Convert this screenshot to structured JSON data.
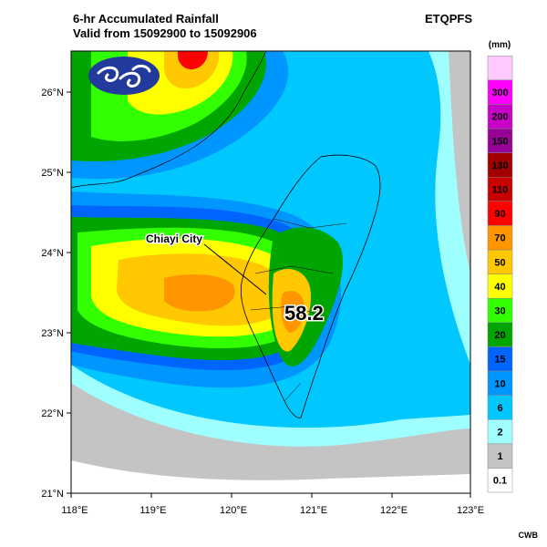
{
  "header": {
    "title": "6-hr Accumulated Rainfall",
    "valid": "Valid from 15092900 to 15092906",
    "product": "ETQPFS"
  },
  "map": {
    "lat_ticks": [
      "21°N",
      "22°N",
      "23°N",
      "24°N",
      "25°N",
      "26°N"
    ],
    "lon_ticks": [
      "118°E",
      "119°E",
      "120°E",
      "121°E",
      "122°E",
      "123°E"
    ],
    "callout_label": "Chiayi City",
    "max_value": "58.2",
    "logo_icon": "cwb-wind-logo-icon"
  },
  "legend": {
    "unit": "(mm)",
    "levels": [
      {
        "label": "0.1",
        "color": "#ffffff"
      },
      {
        "label": "1",
        "color": "#c4c4c4"
      },
      {
        "label": "2",
        "color": "#9fffff"
      },
      {
        "label": "6",
        "color": "#00c8ff"
      },
      {
        "label": "10",
        "color": "#0096ff"
      },
      {
        "label": "15",
        "color": "#0064ff"
      },
      {
        "label": "20",
        "color": "#00a500"
      },
      {
        "label": "30",
        "color": "#32ff00"
      },
      {
        "label": "40",
        "color": "#ffff00"
      },
      {
        "label": "50",
        "color": "#ffc800"
      },
      {
        "label": "70",
        "color": "#ff9600"
      },
      {
        "label": "90",
        "color": "#ff0000"
      },
      {
        "label": "110",
        "color": "#c80000"
      },
      {
        "label": "130",
        "color": "#a00000"
      },
      {
        "label": "150",
        "color": "#960096"
      },
      {
        "label": "200",
        "color": "#c800c8"
      },
      {
        "label": "300",
        "color": "#ff00ff"
      },
      {
        "label": "",
        "color": "#ffc8ff"
      }
    ]
  },
  "credit": "CWB"
}
